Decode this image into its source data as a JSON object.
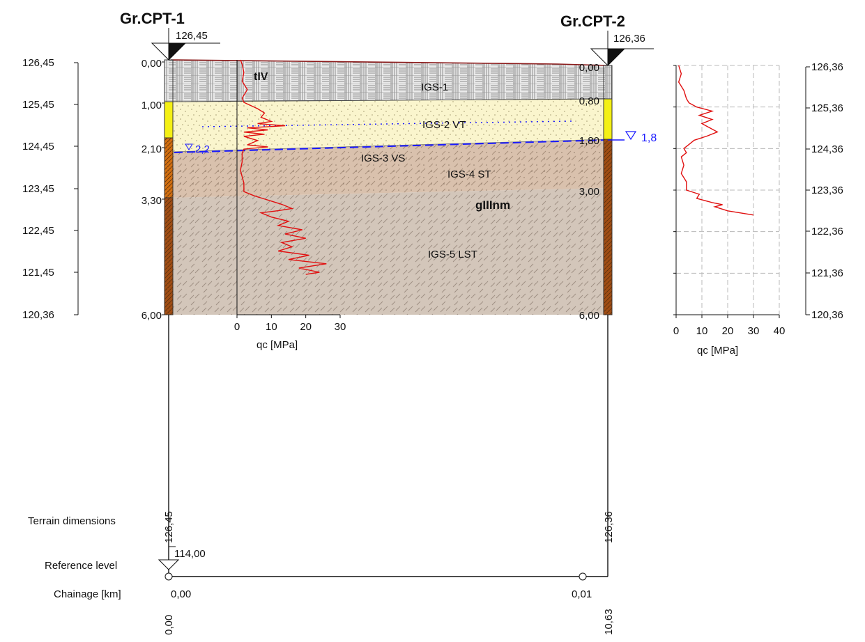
{
  "boreholes": [
    {
      "name": "Gr.CPT-1",
      "elevation": "126,45",
      "depth_labels": [
        "0,00",
        "1,00",
        "2,10",
        "3,30",
        "6,00"
      ],
      "water_level": "2,2",
      "vertical_elev": "126,45",
      "vertical_chainage": "0,00"
    },
    {
      "name": "Gr.CPT-2",
      "elevation": "126,36",
      "depth_labels": [
        "0,00",
        "0,80",
        "1,80",
        "3,00",
        "6,00"
      ],
      "water_level": "1,8",
      "vertical_elev": "126,36",
      "vertical_chainage": "10,63"
    }
  ],
  "left_scale": [
    "126,45",
    "125,45",
    "124,45",
    "123,45",
    "122,45",
    "121,45",
    "120,36"
  ],
  "right_scale": [
    "126,36",
    "125,36",
    "124,36",
    "123,36",
    "122,36",
    "121,36",
    "120,36"
  ],
  "layers": {
    "igs1": "IGS-1",
    "igs2": "IGS-2 VT",
    "igs3": "IGS-3 VS",
    "igs4": "IGS-4 ST",
    "igs5": "IGS-5 LST",
    "til": "tIV",
    "glacial": "gIIInm"
  },
  "labels": {
    "terrain_dimensions": "Terrain dimensions",
    "reference_level": "Reference level",
    "reference_value": "114,00",
    "chainage": "Chainage [km]",
    "chainage_start": "0,00",
    "chainage_end": "0,01"
  },
  "colors": {
    "fill": "#e6e6e6",
    "sand": "#faf5cd",
    "loam": "#d9c0ab",
    "clay": "#d2c5b8",
    "water": "#1a1aff",
    "cpt": "#e01010",
    "column_yellow": "#f4f014",
    "column_orange": "#d26f10",
    "column_brown": "#a04d14"
  },
  "chart_data": [
    {
      "type": "line",
      "name": "CPT-1 inline",
      "xlabel": "qc [MPa]",
      "x_ticks": [
        "0",
        "10",
        "20",
        "30"
      ],
      "xlim": [
        0,
        30
      ],
      "ylabel": "",
      "ylim": [
        0,
        6
      ],
      "series": [
        {
          "depth": [
            0,
            0.1,
            0.3,
            0.5,
            0.7,
            0.9,
            1.0,
            1.15,
            1.25,
            1.35,
            1.45,
            1.5,
            1.55,
            1.6,
            1.65,
            1.7,
            1.75,
            1.8,
            1.9,
            2.0,
            2.05,
            2.1,
            2.2,
            2.4,
            2.6,
            2.9,
            3.1,
            3.2,
            3.3,
            3.4,
            3.5,
            3.55,
            3.6,
            3.7,
            3.8,
            3.9,
            4.0,
            4.1,
            4.2,
            4.3,
            4.4,
            4.5,
            4.6,
            4.7,
            4.8,
            4.9,
            5.0,
            5.05
          ],
          "qc": [
            1,
            1.5,
            2,
            1.5,
            3,
            1.5,
            2,
            6,
            8,
            7,
            10,
            6,
            14,
            3,
            9,
            2,
            8,
            2,
            6,
            3,
            9,
            2,
            1.5,
            1.5,
            1,
            2,
            2,
            5,
            9,
            13,
            16,
            12,
            7,
            10,
            15,
            12,
            19,
            14,
            20,
            13,
            16,
            12,
            21,
            15,
            26,
            18,
            24,
            20
          ]
        }
      ]
    },
    {
      "type": "line",
      "name": "CPT-2",
      "xlabel": "qc [MPa]",
      "x_ticks": [
        "0",
        "10",
        "20",
        "30",
        "40"
      ],
      "xlim": [
        0,
        40
      ],
      "ylabel": "",
      "ylim": [
        0,
        6
      ],
      "series": [
        {
          "depth": [
            0,
            0.2,
            0.4,
            0.6,
            0.8,
            0.9,
            1.0,
            1.1,
            1.2,
            1.3,
            1.4,
            1.5,
            1.6,
            1.7,
            1.8,
            1.9,
            2.0,
            2.1,
            2.2,
            2.4,
            2.6,
            2.8,
            3.0,
            3.1,
            3.2,
            3.3,
            3.35,
            3.4,
            3.5,
            3.6
          ],
          "qc": [
            1,
            2,
            1,
            3,
            4,
            5,
            8,
            14,
            9,
            14,
            10,
            13,
            16,
            12,
            7,
            5,
            3,
            4,
            2,
            3,
            2,
            4,
            4,
            9,
            8,
            14,
            18,
            15,
            20,
            30
          ]
        }
      ]
    }
  ]
}
